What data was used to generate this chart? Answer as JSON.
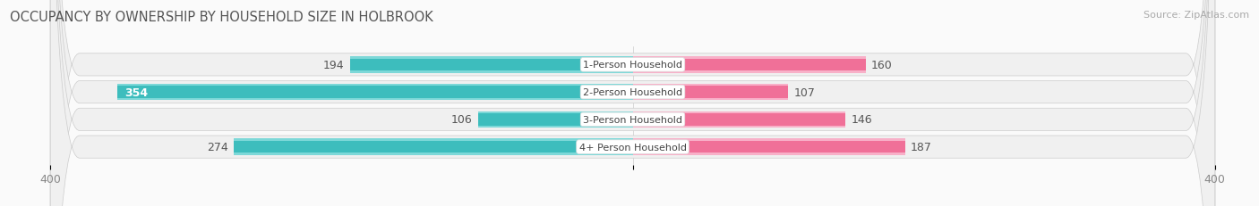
{
  "title": "OCCUPANCY BY OWNERSHIP BY HOUSEHOLD SIZE IN HOLBROOK",
  "source": "Source: ZipAtlas.com",
  "categories": [
    "1-Person Household",
    "2-Person Household",
    "3-Person Household",
    "4+ Person Household"
  ],
  "owner_values": [
    194,
    354,
    106,
    274
  ],
  "renter_values": [
    160,
    107,
    146,
    187
  ],
  "owner_color": "#3DBDBD",
  "renter_color": "#F07098",
  "owner_color_light": "#7DD8D8",
  "renter_color_light": "#F8B0C8",
  "row_bg_color": "#EFEFEF",
  "row_border_color": "#DDDDDD",
  "axis_max": 400,
  "title_fontsize": 10.5,
  "source_fontsize": 8,
  "bar_label_fontsize": 9,
  "category_fontsize": 8,
  "legend_fontsize": 9,
  "axis_tick_fontsize": 9,
  "fig_bg": "#FAFAFA"
}
